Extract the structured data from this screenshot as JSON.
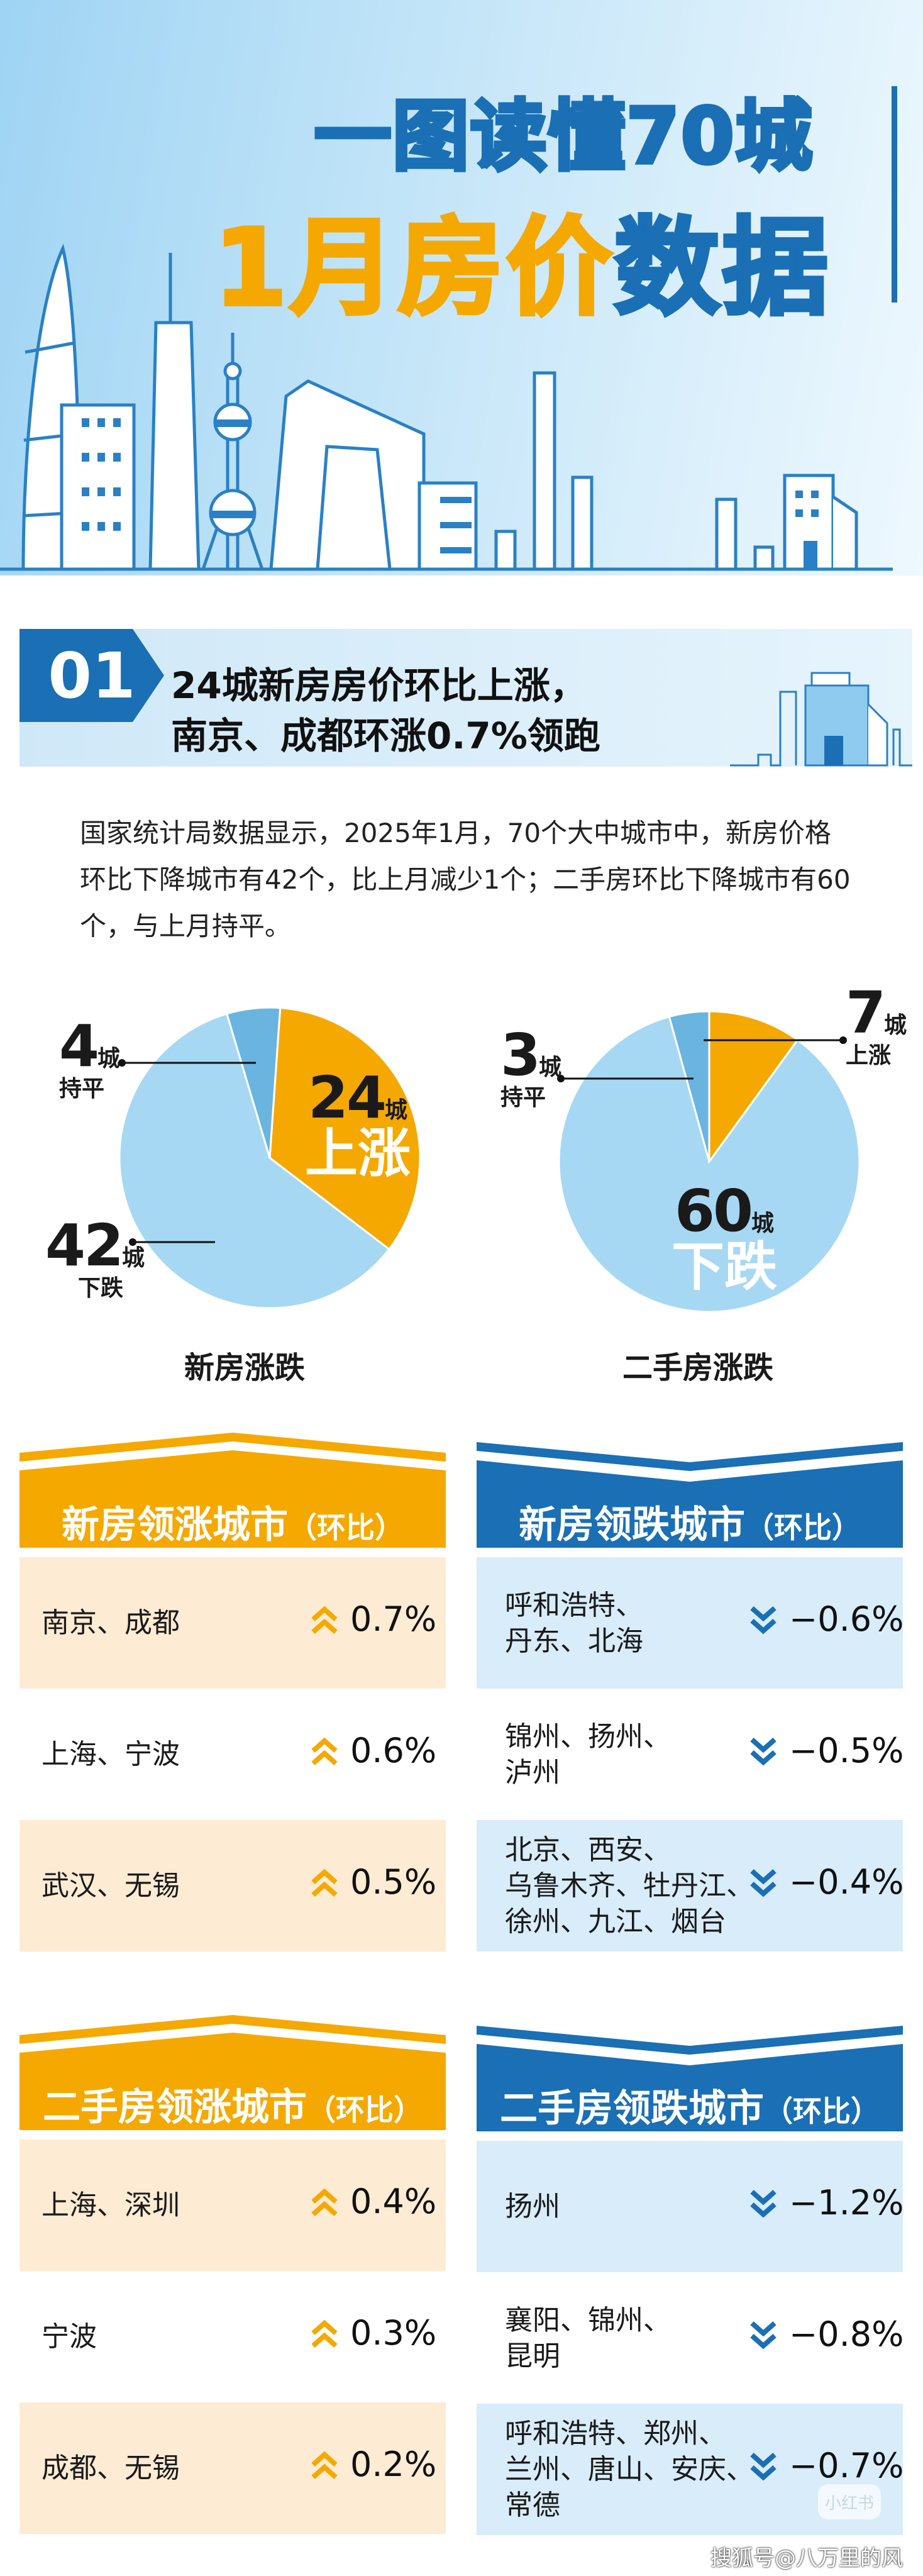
{
  "header": {
    "title_line1": "一图读懂70城",
    "title_line2_parts": [
      "1月",
      "房价",
      "数据"
    ]
  },
  "section1": {
    "number": "01",
    "title_line1": "24城新房房价环比上涨，",
    "title_line2": "南京、成都环涨0.7%领跑",
    "paragraph": "国家统计局数据显示，2025年1月，70个大中城市中，新房价格环比下降城市有42个，比上月减少1个；二手房环比下降城市有60个，与上月持平。"
  },
  "chart_data": [
    {
      "type": "pie",
      "title": "新房涨跌",
      "slices": [
        {
          "value": 24,
          "unit": "城",
          "label": "上涨",
          "color": "#f5a800"
        },
        {
          "value": 42,
          "unit": "城",
          "label": "下跌",
          "color": "#a6d8f4"
        },
        {
          "value": 4,
          "unit": "城",
          "label": "持平",
          "color": "#6ab4e0"
        }
      ]
    },
    {
      "type": "pie",
      "title": "二手房涨跌",
      "slices": [
        {
          "value": 7,
          "unit": "城",
          "label": "上涨",
          "color": "#f5a800"
        },
        {
          "value": 60,
          "unit": "城",
          "label": "下跌",
          "color": "#a6d8f4"
        },
        {
          "value": 3,
          "unit": "城",
          "label": "持平",
          "color": "#6ab4e0"
        }
      ]
    }
  ],
  "tables": {
    "new_up": {
      "title": "新房领涨城市",
      "suffix": "（环比）",
      "rows": [
        {
          "cities": "南京、成都",
          "value": "0.7%"
        },
        {
          "cities": "上海、宁波",
          "value": "0.6%"
        },
        {
          "cities": "武汉、无锡",
          "value": "0.5%"
        }
      ]
    },
    "new_down": {
      "title": "新房领跌城市",
      "suffix": "（环比）",
      "rows": [
        {
          "cities": "呼和浩特、\n丹东、北海",
          "value": "−0.6%"
        },
        {
          "cities": "锦州、扬州、\n泸州",
          "value": "−0.5%"
        },
        {
          "cities": "北京、西安、\n乌鲁木齐、牡丹江、\n徐州、九江、烟台",
          "value": "−0.4%"
        }
      ]
    },
    "second_up": {
      "title": "二手房领涨城市",
      "suffix": "（环比）",
      "rows": [
        {
          "cities": "上海、深圳",
          "value": "0.4%"
        },
        {
          "cities": "宁波",
          "value": "0.3%"
        },
        {
          "cities": "成都、无锡",
          "value": "0.2%"
        }
      ]
    },
    "second_down": {
      "title": "二手房领跌城市",
      "suffix": "（环比）",
      "rows": [
        {
          "cities": "扬州",
          "value": "−1.2%"
        },
        {
          "cities": "襄阳、锦州、\n昆明",
          "value": "−0.8%"
        },
        {
          "cities": "呼和浩特、郑州、\n兰州、唐山、安庆、\n常德",
          "value": "−0.7%"
        }
      ]
    }
  },
  "colors": {
    "blue": "#1a6fb5",
    "orange": "#f5a800",
    "orange_row": "#fdebd3",
    "blue_row": "#d8ecfa"
  },
  "watermarks": {
    "badge": "小红书",
    "source": "搜狐号@八万里的风"
  }
}
